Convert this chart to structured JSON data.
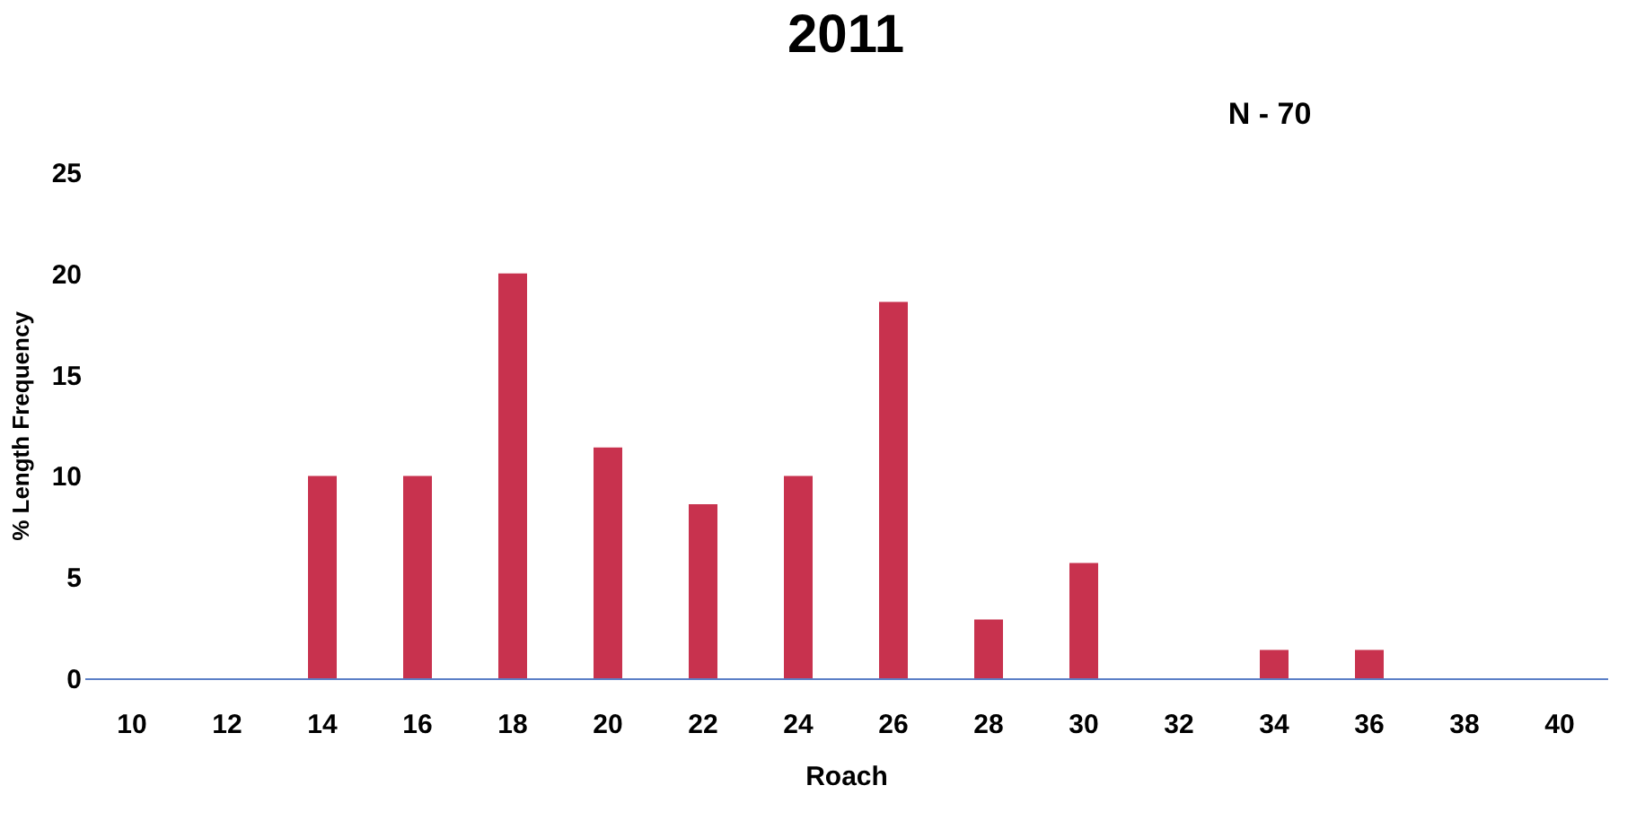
{
  "chart_data": {
    "type": "bar",
    "title": "2011",
    "xlabel": "Roach",
    "ylabel": "% Length Frequency",
    "categories": [
      "10",
      "12",
      "14",
      "16",
      "18",
      "20",
      "22",
      "24",
      "26",
      "28",
      "30",
      "32",
      "34",
      "36",
      "38",
      "40"
    ],
    "values": [
      0,
      0,
      10,
      10,
      20,
      11.4,
      8.6,
      10,
      18.6,
      2.9,
      5.7,
      0,
      1.4,
      1.4,
      0,
      0
    ],
    "color": "#c8324e",
    "ylim": [
      0,
      25
    ],
    "yticks": [
      0,
      5,
      10,
      15,
      20,
      25
    ],
    "grid": false,
    "annotations": [
      "N - 70"
    ]
  }
}
